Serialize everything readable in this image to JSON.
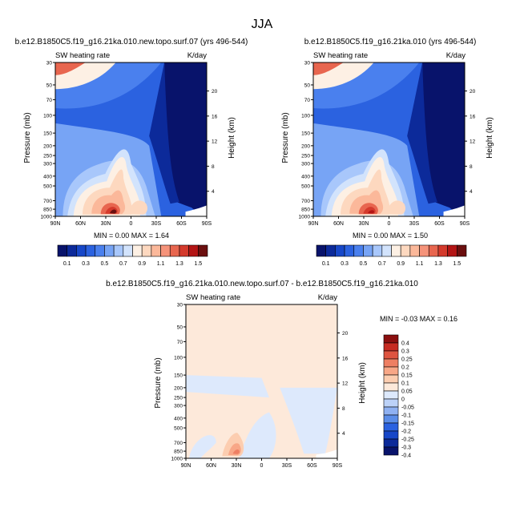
{
  "page_title": "JJA",
  "colors": {
    "levels": [
      "#08136b",
      "#0c2a9a",
      "#1747c8",
      "#2b62e0",
      "#4a80ee",
      "#77a4f5",
      "#a8c7fb",
      "#d2e3fc",
      "#fdf0e4",
      "#fdd8bf",
      "#fbb89a",
      "#f5937a",
      "#e8664f",
      "#d43a2c",
      "#b31515",
      "#6b0f0f"
    ],
    "diff_levels": [
      "#08136b",
      "#0c2a9a",
      "#1747c8",
      "#2b62e0",
      "#5b8de8",
      "#8fb1f2",
      "#bcd2f8",
      "#dde9fc",
      "#fde9da",
      "#fccdb0",
      "#f8a787",
      "#ee7f63",
      "#de5440",
      "#c62b22",
      "#8b0f0f"
    ]
  },
  "chart_data": [
    {
      "type": "heatmap",
      "title": "b.e12.B1850C5.f19_g16.21ka.010.new.topo.surf.07 (yrs 496-544)",
      "subtitle_left": "SW heating rate",
      "subtitle_right": "K/day",
      "ylabel": "Pressure (mb)",
      "ylabel_right": "Height (km)",
      "x_ticks": [
        "90N",
        "60N",
        "30N",
        "0",
        "30S",
        "60S",
        "90S"
      ],
      "y_ticks": [
        "30",
        "50",
        "70",
        "100",
        "150",
        "200",
        "250",
        "300",
        "400",
        "500",
        "700",
        "850",
        "1000"
      ],
      "y_ticks_right": [
        "20",
        "16",
        "12",
        "8",
        "4"
      ],
      "stats": "MIN =   0.00   MAX =   1.64"
    },
    {
      "type": "heatmap",
      "title": "b.e12.B1850C5.f19_g16.21ka.010 (yrs 496-544)",
      "subtitle_left": "SW heating rate",
      "subtitle_right": "K/day",
      "ylabel": "Pressure (mb)",
      "ylabel_right": "Height (km)",
      "x_ticks": [
        "90N",
        "60N",
        "30N",
        "0",
        "30S",
        "60S",
        "90S"
      ],
      "y_ticks": [
        "30",
        "50",
        "70",
        "100",
        "150",
        "200",
        "250",
        "300",
        "400",
        "500",
        "700",
        "850",
        "1000"
      ],
      "y_ticks_right": [
        "20",
        "16",
        "12",
        "8",
        "4"
      ],
      "stats": "MIN =   0.00   MAX =   1.50"
    },
    {
      "type": "heatmap",
      "title": "b.e12.B1850C5.f19_g16.21ka.010.new.topo.surf.07 - b.e12.B1850C5.f19_g16.21ka.010",
      "subtitle_left": "SW heating rate",
      "subtitle_right": "K/day",
      "ylabel": "Pressure (mb)",
      "ylabel_right": "Height (km)",
      "x_ticks": [
        "90N",
        "60N",
        "30N",
        "0",
        "30S",
        "60S",
        "90S"
      ],
      "y_ticks": [
        "30",
        "50",
        "70",
        "100",
        "150",
        "200",
        "250",
        "300",
        "400",
        "500",
        "700",
        "850",
        "1000"
      ],
      "y_ticks_right": [
        "20",
        "16",
        "12",
        "8",
        "4"
      ],
      "stats": "MIN = -0.03   MAX =   0.16"
    }
  ],
  "colorbar_top": {
    "labels": [
      "0.1",
      "0.3",
      "0.5",
      "0.7",
      "0.9",
      "1.1",
      "1.3",
      "1.5"
    ]
  },
  "colorbar_diff": {
    "labels": [
      "0.4",
      "0.3",
      "0.25",
      "0.2",
      "0.15",
      "0.1",
      "0.05",
      "0",
      "-0.05",
      "-0.1",
      "-0.15",
      "-0.2",
      "-0.25",
      "-0.3",
      "-0.4"
    ]
  }
}
